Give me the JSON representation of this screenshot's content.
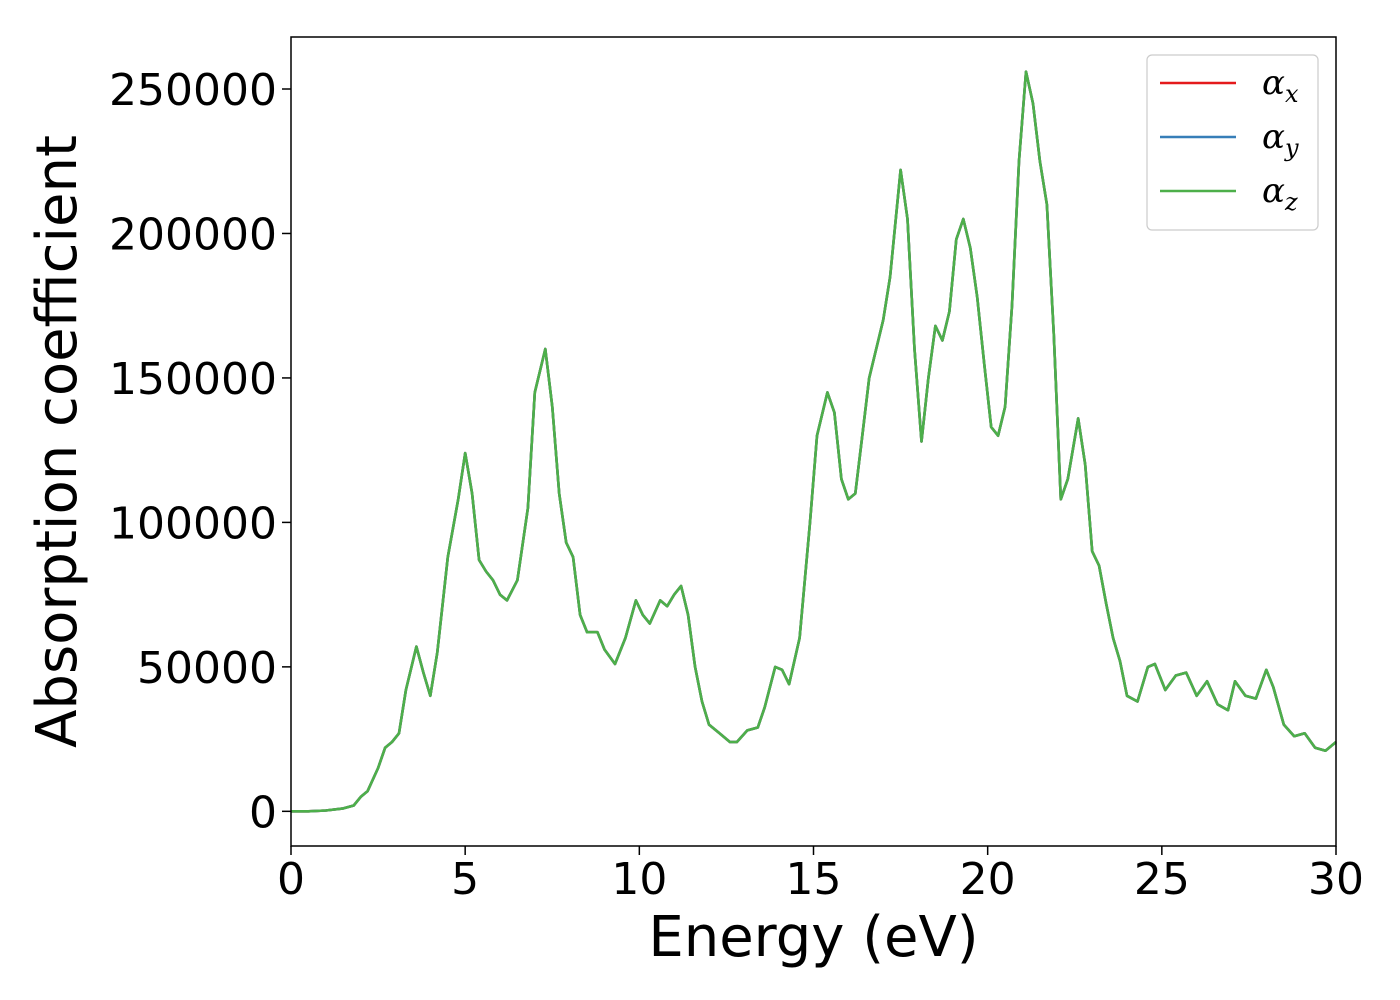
{
  "chart_data": {
    "type": "line",
    "xlabel": "Energy (eV)",
    "ylabel": "Absorption coefficient",
    "xlim": [
      0,
      30
    ],
    "ylim": [
      -12000,
      268000
    ],
    "xticks": [
      0,
      5,
      10,
      15,
      20,
      25,
      30
    ],
    "yticks": [
      0,
      50000,
      100000,
      150000,
      200000,
      250000
    ],
    "grid": false,
    "legend_position": "top-right",
    "legend": [
      {
        "symbol": "α",
        "sub": "x",
        "color": "#e41a1c"
      },
      {
        "symbol": "α",
        "sub": "y",
        "color": "#377eb8"
      },
      {
        "symbol": "α",
        "sub": "z",
        "color": "#4daf4a"
      }
    ],
    "x": [
      0,
      0.5,
      1.0,
      1.5,
      1.8,
      2.0,
      2.2,
      2.5,
      2.7,
      2.9,
      3.1,
      3.3,
      3.6,
      3.8,
      4.0,
      4.2,
      4.5,
      4.8,
      5.0,
      5.2,
      5.4,
      5.6,
      5.8,
      6.0,
      6.2,
      6.5,
      6.8,
      7.0,
      7.3,
      7.5,
      7.7,
      7.9,
      8.1,
      8.3,
      8.5,
      8.8,
      9.0,
      9.3,
      9.6,
      9.9,
      10.1,
      10.3,
      10.6,
      10.8,
      11.0,
      11.2,
      11.4,
      11.6,
      11.8,
      12.0,
      12.3,
      12.6,
      12.8,
      13.1,
      13.4,
      13.6,
      13.9,
      14.1,
      14.3,
      14.6,
      14.9,
      15.1,
      15.4,
      15.6,
      15.8,
      16.0,
      16.2,
      16.4,
      16.6,
      16.8,
      17.0,
      17.2,
      17.5,
      17.7,
      17.9,
      18.1,
      18.3,
      18.5,
      18.7,
      18.9,
      19.1,
      19.3,
      19.5,
      19.7,
      19.9,
      20.1,
      20.3,
      20.5,
      20.7,
      20.9,
      21.1,
      21.3,
      21.5,
      21.7,
      21.9,
      22.1,
      22.3,
      22.6,
      22.8,
      23.0,
      23.2,
      23.4,
      23.6,
      23.8,
      24.0,
      24.3,
      24.6,
      24.8,
      25.1,
      25.4,
      25.7,
      26.0,
      26.3,
      26.6,
      26.9,
      27.1,
      27.4,
      27.7,
      28.0,
      28.2,
      28.5,
      28.8,
      29.1,
      29.4,
      29.7,
      30.0
    ],
    "series": [
      {
        "name": "αx",
        "values": [
          0,
          0,
          300,
          1000,
          2000,
          5000,
          7000,
          15000,
          22000,
          24000,
          27000,
          42000,
          57000,
          48000,
          40000,
          55000,
          88000,
          108000,
          124000,
          110000,
          87000,
          83000,
          80000,
          75000,
          73000,
          80000,
          105000,
          145000,
          160000,
          140000,
          110000,
          93000,
          88000,
          68000,
          62000,
          62000,
          56000,
          51000,
          60000,
          73000,
          68000,
          65000,
          73000,
          71000,
          75000,
          78000,
          68000,
          50000,
          38000,
          30000,
          27000,
          24000,
          24000,
          28000,
          29000,
          36000,
          50000,
          49000,
          44000,
          60000,
          100000,
          130000,
          145000,
          138000,
          115000,
          108000,
          110000,
          130000,
          150000,
          160000,
          170000,
          185000,
          222000,
          205000,
          160000,
          128000,
          150000,
          168000,
          163000,
          173000,
          198000,
          205000,
          195000,
          178000,
          155000,
          133000,
          130000,
          140000,
          175000,
          225000,
          256000,
          245000,
          225000,
          210000,
          165000,
          108000,
          115000,
          136000,
          120000,
          90000,
          85000,
          72000,
          60000,
          52000,
          40000,
          38000,
          50000,
          51000,
          42000,
          47000,
          48000,
          40000,
          45000,
          37000,
          35000,
          45000,
          40000,
          39000,
          49000,
          43000,
          30000,
          26000,
          27000,
          22000,
          21000,
          24000
        ]
      },
      {
        "name": "αy",
        "values": [
          0,
          0,
          300,
          1000,
          2000,
          5000,
          7000,
          15000,
          22000,
          24000,
          27000,
          42000,
          57000,
          48000,
          40000,
          55000,
          88000,
          108000,
          124000,
          110000,
          87000,
          83000,
          80000,
          75000,
          73000,
          80000,
          105000,
          145000,
          160000,
          140000,
          110000,
          93000,
          88000,
          68000,
          62000,
          62000,
          56000,
          51000,
          60000,
          73000,
          68000,
          65000,
          73000,
          71000,
          75000,
          78000,
          68000,
          50000,
          38000,
          30000,
          27000,
          24000,
          24000,
          28000,
          29000,
          36000,
          50000,
          49000,
          44000,
          60000,
          100000,
          130000,
          145000,
          138000,
          115000,
          108000,
          110000,
          130000,
          150000,
          160000,
          170000,
          185000,
          222000,
          205000,
          160000,
          128000,
          150000,
          168000,
          163000,
          173000,
          198000,
          205000,
          195000,
          178000,
          155000,
          133000,
          130000,
          140000,
          175000,
          225000,
          256000,
          245000,
          225000,
          210000,
          165000,
          108000,
          115000,
          136000,
          120000,
          90000,
          85000,
          72000,
          60000,
          52000,
          40000,
          38000,
          50000,
          51000,
          42000,
          47000,
          48000,
          40000,
          45000,
          37000,
          35000,
          45000,
          40000,
          39000,
          49000,
          43000,
          30000,
          26000,
          27000,
          22000,
          21000,
          24000
        ]
      },
      {
        "name": "αz",
        "values": [
          0,
          0,
          300,
          1000,
          2000,
          5000,
          7000,
          15000,
          22000,
          24000,
          27000,
          42000,
          57000,
          48000,
          40000,
          55000,
          88000,
          108000,
          124000,
          110000,
          87000,
          83000,
          80000,
          75000,
          73000,
          80000,
          105000,
          145000,
          160000,
          140000,
          110000,
          93000,
          88000,
          68000,
          62000,
          62000,
          56000,
          51000,
          60000,
          73000,
          68000,
          65000,
          73000,
          71000,
          75000,
          78000,
          68000,
          50000,
          38000,
          30000,
          27000,
          24000,
          24000,
          28000,
          29000,
          36000,
          50000,
          49000,
          44000,
          60000,
          100000,
          130000,
          145000,
          138000,
          115000,
          108000,
          110000,
          130000,
          150000,
          160000,
          170000,
          185000,
          222000,
          205000,
          160000,
          128000,
          150000,
          168000,
          163000,
          173000,
          198000,
          205000,
          195000,
          178000,
          155000,
          133000,
          130000,
          140000,
          175000,
          225000,
          256000,
          245000,
          225000,
          210000,
          165000,
          108000,
          115000,
          136000,
          120000,
          90000,
          85000,
          72000,
          60000,
          52000,
          40000,
          38000,
          50000,
          51000,
          42000,
          47000,
          48000,
          40000,
          45000,
          37000,
          35000,
          45000,
          40000,
          39000,
          49000,
          43000,
          30000,
          26000,
          27000,
          22000,
          21000,
          24000
        ]
      }
    ]
  }
}
